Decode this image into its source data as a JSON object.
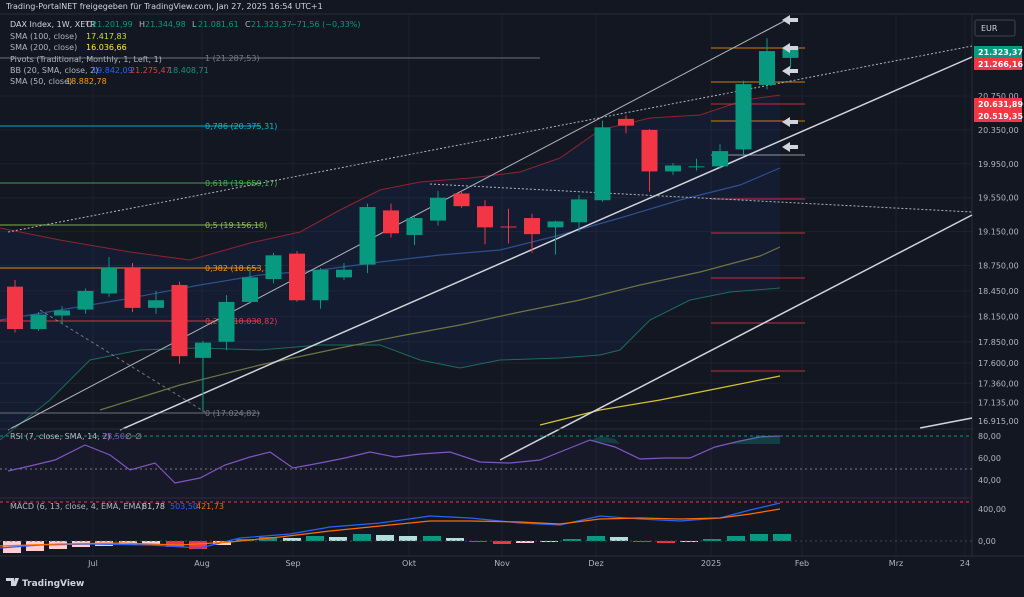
{
  "header": {
    "shared_by": "Trading-PortalNET freigegeben für TradingView.com, Jan 27, 2025 16:54 UTC+1"
  },
  "legend": {
    "symbol": "DAX Index, 1W, XETR",
    "ohlc": [
      {
        "key": "O",
        "value": "21.201,99"
      },
      {
        "key": "H",
        "value": "21.344,98"
      },
      {
        "key": "L",
        "value": "21.081,61"
      },
      {
        "key": "C",
        "value": "21.323,37"
      }
    ],
    "change": "−71,56 (−0,33%)",
    "sma100_label": "SMA (100, close)",
    "sma100_value": "17.417,83",
    "sma200_label": "SMA (200, close)",
    "sma200_value": "16.036,66",
    "pivots_label": "Pivots (Traditional, Monthly, 1, Left, 1)",
    "bb_label": "BB (20, SMA, close, 2)",
    "bb_values": [
      "19.842,09",
      "21.275,47",
      "18.408,71"
    ],
    "sma50_label": "SMA (50, close)",
    "sma50_value": "18.882,78"
  },
  "currency_badge": "EUR",
  "price_axis": {
    "ticks": [
      "20.750,00",
      "20.350,00",
      "19.950,00",
      "19.550,00",
      "19.150,00",
      "18.750,00",
      "18.450,00",
      "18.150,00",
      "17.850,00",
      "17.600,00",
      "17.360,00",
      "17.135,00",
      "16.915,00"
    ],
    "tags": [
      {
        "text": "21.323,37",
        "color": "#089981"
      },
      {
        "text": "21.266,16",
        "color": "#f23645"
      },
      {
        "text": "20.631,89",
        "color": "#f23645"
      },
      {
        "text": "20.519,35",
        "color": "#f23645"
      }
    ]
  },
  "fib_levels": [
    {
      "label": "1 (21.287,53)",
      "color": "#787b86"
    },
    {
      "label": "0,786 (20.375,31)",
      "color": "#00bcd4"
    },
    {
      "label": "0,618 (19.659,17)",
      "color": "#4caf50"
    },
    {
      "label": "0,5 (19.156,18)",
      "color": "#8bc34a"
    },
    {
      "label": "0,382 (18.653,18)",
      "color": "#ff9800"
    },
    {
      "label": "0,236 (18.030,82)",
      "color": "#f23645"
    },
    {
      "label": "0 (17.024,82)",
      "color": "#787b86"
    }
  ],
  "rsi": {
    "label": "RSI (7, close, SMA, 14, 2)",
    "value": "78,50",
    "extra1": "∅",
    "extra2": "∅",
    "ticks": [
      "80,00",
      "60,00",
      "40,00"
    ]
  },
  "macd": {
    "label": "MACD (6, 13, close, 4, EMA, EMA)",
    "v1": "81,78",
    "v2": "503,50",
    "v3": "421,73",
    "ticks": [
      "400,00",
      "0,00"
    ]
  },
  "time_axis": [
    "Jul",
    "Aug",
    "Sep",
    "Okt",
    "Nov",
    "Dez",
    "2025",
    "Feb",
    "Mrz",
    "24"
  ],
  "branding": "TradingView",
  "colors": {
    "up": "#089981",
    "down": "#f23645",
    "bg": "#131722"
  },
  "chart_data": {
    "type": "candlestick",
    "title": "DAX Index, 1W, XETR",
    "timeframe": "1W",
    "ylim": [
      16915,
      21420
    ],
    "candles": [
      {
        "o": 18500,
        "h": 18580,
        "c": 18000,
        "l": 17960
      },
      {
        "o": 18000,
        "h": 18200,
        "c": 18170,
        "l": 17980
      },
      {
        "o": 18160,
        "h": 18270,
        "c": 18220,
        "l": 18060
      },
      {
        "o": 18230,
        "h": 18480,
        "c": 18450,
        "l": 18180
      },
      {
        "o": 18420,
        "h": 18850,
        "c": 18720,
        "l": 18380
      },
      {
        "o": 18720,
        "h": 18780,
        "c": 18250,
        "l": 18200
      },
      {
        "o": 18250,
        "h": 18450,
        "c": 18340,
        "l": 18180
      },
      {
        "o": 18520,
        "h": 18560,
        "c": 17680,
        "l": 17590
      },
      {
        "o": 17660,
        "h": 17860,
        "c": 17840,
        "l": 17024
      },
      {
        "o": 17850,
        "h": 18400,
        "c": 18320,
        "l": 17750
      },
      {
        "o": 18320,
        "h": 18730,
        "c": 18610,
        "l": 18300
      },
      {
        "o": 18590,
        "h": 18900,
        "c": 18870,
        "l": 18540
      },
      {
        "o": 18890,
        "h": 18920,
        "c": 18340,
        "l": 18320
      },
      {
        "o": 18340,
        "h": 18720,
        "c": 18700,
        "l": 18240
      },
      {
        "o": 18610,
        "h": 18780,
        "c": 18700,
        "l": 18580
      },
      {
        "o": 18760,
        "h": 19480,
        "c": 19440,
        "l": 18660
      },
      {
        "o": 19400,
        "h": 19480,
        "c": 19130,
        "l": 19080
      },
      {
        "o": 19110,
        "h": 19330,
        "c": 19310,
        "l": 18990
      },
      {
        "o": 19280,
        "h": 19630,
        "c": 19550,
        "l": 19220
      },
      {
        "o": 19600,
        "h": 19640,
        "c": 19450,
        "l": 19430
      },
      {
        "o": 19450,
        "h": 19520,
        "c": 19200,
        "l": 19000
      },
      {
        "o": 19210,
        "h": 19420,
        "c": 19200,
        "l": 19010
      },
      {
        "o": 19310,
        "h": 19360,
        "c": 19120,
        "l": 18900
      },
      {
        "o": 19200,
        "h": 19280,
        "c": 19270,
        "l": 18880
      },
      {
        "o": 19260,
        "h": 19580,
        "c": 19530,
        "l": 19150
      },
      {
        "o": 19520,
        "h": 20460,
        "c": 20380,
        "l": 19500
      },
      {
        "o": 20480,
        "h": 20520,
        "c": 20400,
        "l": 20310
      },
      {
        "o": 20350,
        "h": 20360,
        "c": 19860,
        "l": 19620
      },
      {
        "o": 19860,
        "h": 19960,
        "c": 19930,
        "l": 19820
      },
      {
        "o": 19920,
        "h": 20010,
        "c": 19920,
        "l": 19870
      },
      {
        "o": 19920,
        "h": 20180,
        "c": 20100,
        "l": 19890
      },
      {
        "o": 20120,
        "h": 20930,
        "c": 20890,
        "l": 20040
      },
      {
        "o": 20880,
        "h": 21430,
        "c": 21280,
        "l": 20830
      },
      {
        "o": 21200,
        "h": 21340,
        "c": 21320,
        "l": 21080
      }
    ]
  }
}
